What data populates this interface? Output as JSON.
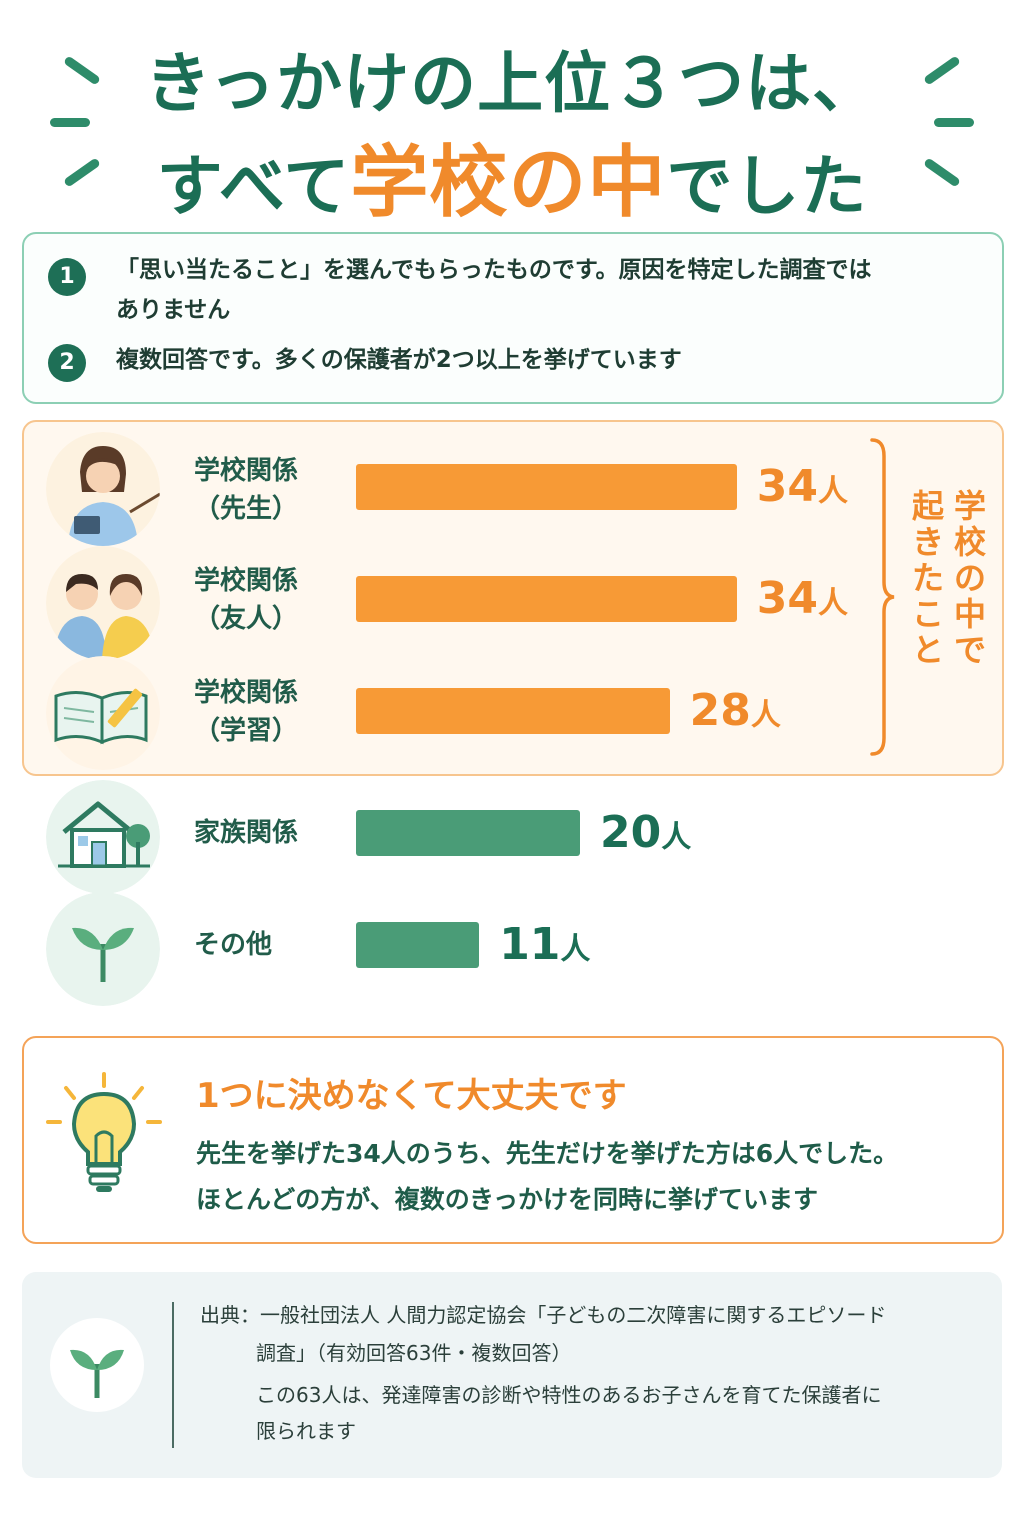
{
  "title": {
    "line1": "きっかけの上位３つは、",
    "line2_pre": "すべて",
    "line2_highlight": "学校の中",
    "line2_post": "でした"
  },
  "notes": [
    {
      "num": "1",
      "text_line1": "「思い当たること」を選んでもらったものです。原因を特定した調査では",
      "text_line2": "ありません"
    },
    {
      "num": "2",
      "text_line1": "複数回答です。多くの保護者が2つ以上を挙げています"
    }
  ],
  "chart_data": {
    "type": "bar",
    "orientation": "horizontal",
    "categories": [
      "学校関係\n（先生）",
      "学校関係\n（友人）",
      "学校関係\n（学習）",
      "家族関係",
      "その他"
    ],
    "values": [
      34,
      34,
      28,
      20,
      11
    ],
    "unit": "人",
    "value_labels": [
      "34",
      "34",
      "28",
      "20",
      "11"
    ],
    "bar_colors": [
      "#f79a36",
      "#f79a36",
      "#f79a36",
      "#4a9c77",
      "#4a9c77"
    ],
    "label_colors": [
      "#f08a2b",
      "#f08a2b",
      "#f08a2b",
      "#1b6e55",
      "#1b6e55"
    ],
    "bracket_label_col1": "学校の中で",
    "bracket_label_col2": "起きたこと",
    "icons": [
      "teacher-icon",
      "friends-icon",
      "book-pencil-icon",
      "house-icon",
      "sprout-icon"
    ]
  },
  "tip": {
    "title": "1つに決めなくて大丈夫です",
    "line1": "先生を挙げた34人のうち、先生だけを挙げた方は6人でした。",
    "line2": "ほとんどの方が、複数のきっかけを同時に挙げています",
    "icon": "lightbulb-icon"
  },
  "source": {
    "line1": "出典：一般社団法人 人間力認定協会「子どもの二次障害に関するエピソード",
    "line2": "調査」（有効回答63件・複数回答）",
    "line3": "この63人は、発達障害の診断や特性のあるお子さんを育てた保護者に",
    "line4": "限られます",
    "icon": "sprout-icon"
  },
  "colors": {
    "green": "#1b6e55",
    "orange": "#f08a2b",
    "bar_orange": "#f79a36",
    "bar_green": "#4a9c77"
  }
}
